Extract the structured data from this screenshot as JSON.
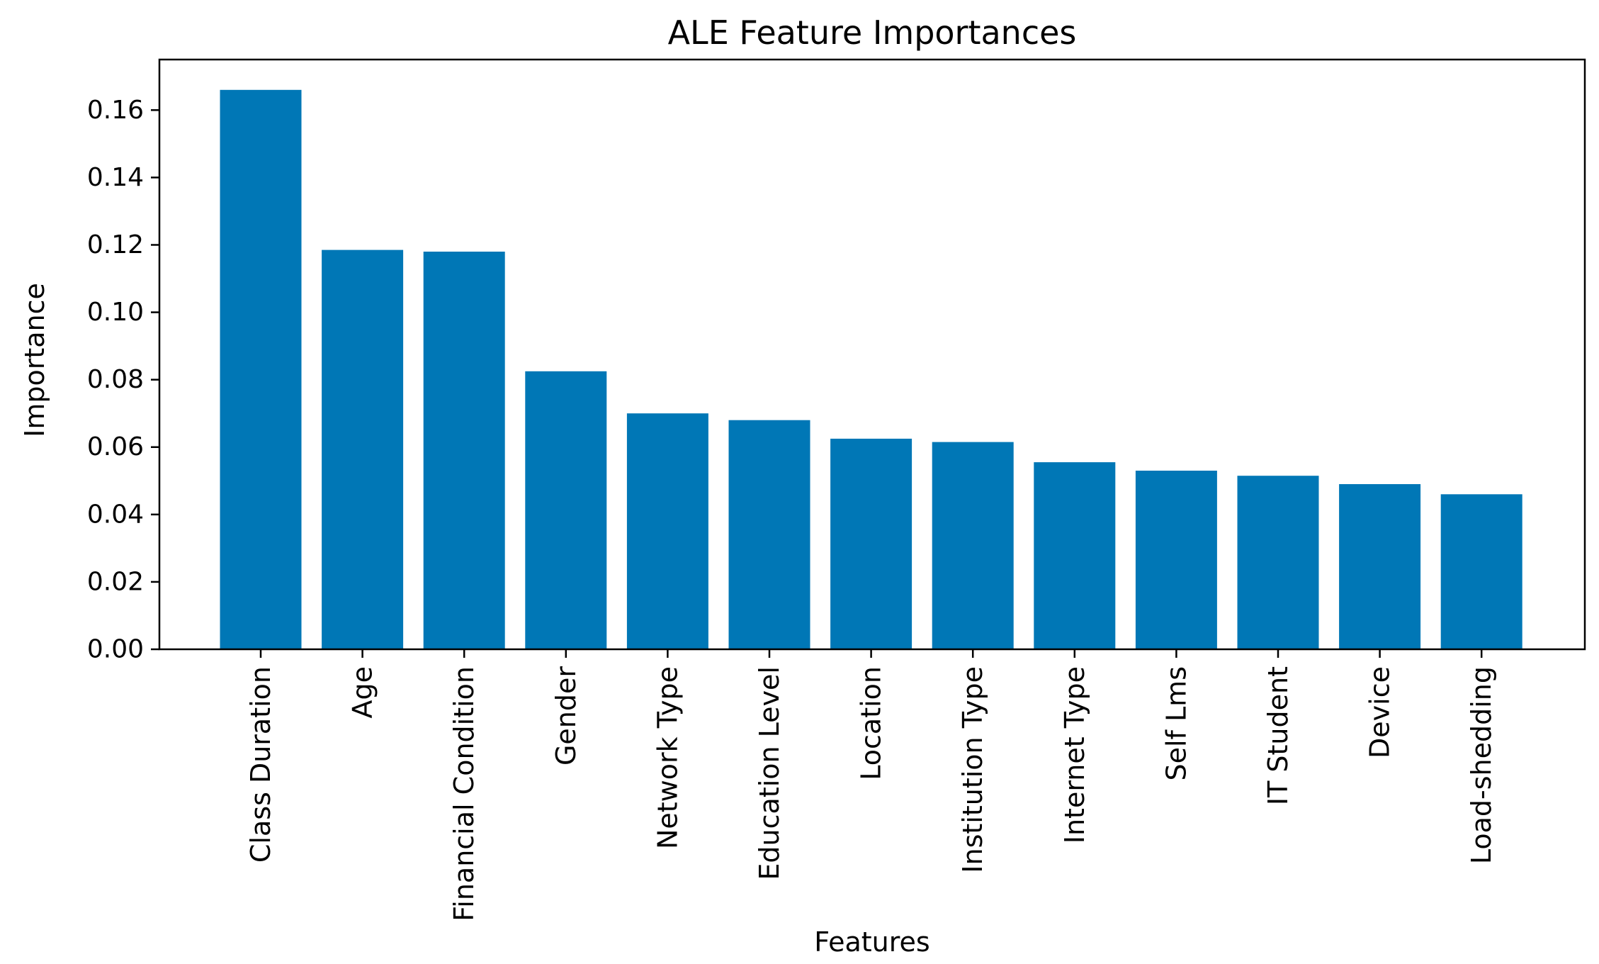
{
  "chart_data": {
    "type": "bar",
    "title": "ALE Feature Importances",
    "xlabel": "Features",
    "ylabel": "Importance",
    "categories": [
      "Class Duration",
      "Age",
      "Financial Condition",
      "Gender",
      "Network Type",
      "Education Level",
      "Location",
      "Institution Type",
      "Internet Type",
      "Self Lms",
      "IT Student",
      "Device",
      "Load-shedding"
    ],
    "values": [
      0.166,
      0.1185,
      0.118,
      0.0825,
      0.07,
      0.068,
      0.0625,
      0.0615,
      0.0555,
      0.053,
      0.0515,
      0.049,
      0.046
    ],
    "ylim": [
      0,
      0.175
    ],
    "yticks": [
      "0.00",
      "0.02",
      "0.04",
      "0.06",
      "0.08",
      "0.10",
      "0.12",
      "0.14",
      "0.16"
    ],
    "grid": false,
    "bar_color": "#0077b6"
  }
}
